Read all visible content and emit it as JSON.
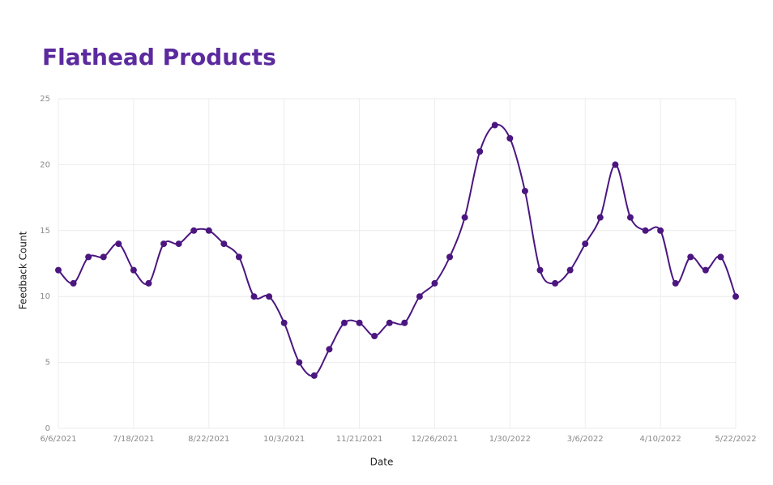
{
  "chart_data": {
    "type": "line",
    "title": "Flathead Products",
    "x_label": "Date",
    "y_label": "Feedback Count",
    "categories": [
      "6/6/2021",
      null,
      null,
      null,
      null,
      "7/18/2021",
      null,
      null,
      null,
      null,
      "8/22/2021",
      null,
      null,
      null,
      null,
      "10/3/2021",
      null,
      null,
      null,
      null,
      "11/21/2021",
      null,
      null,
      null,
      null,
      "12/26/2021",
      null,
      null,
      null,
      null,
      "1/30/2022",
      null,
      null,
      null,
      null,
      "3/6/2022",
      null,
      null,
      null,
      null,
      "4/10/2022",
      null,
      null,
      null,
      null,
      "5/22/2022"
    ],
    "series": [
      {
        "name": "Feedback Count",
        "color": "#4b1680",
        "values": [
          12,
          11,
          13,
          13,
          14,
          12,
          11,
          14,
          14,
          15,
          15,
          14,
          13,
          10,
          10,
          8,
          5,
          4,
          6,
          8,
          8,
          7,
          8,
          8,
          10,
          11,
          13,
          16,
          21,
          23,
          22,
          18,
          12,
          11,
          12,
          14,
          16,
          20,
          16,
          15,
          15,
          11,
          13,
          12,
          13,
          10
        ]
      }
    ],
    "ylim": [
      0,
      25
    ],
    "yticks": [
      0,
      5,
      10,
      15,
      20,
      25
    ],
    "grid": true,
    "smooth": true
  }
}
